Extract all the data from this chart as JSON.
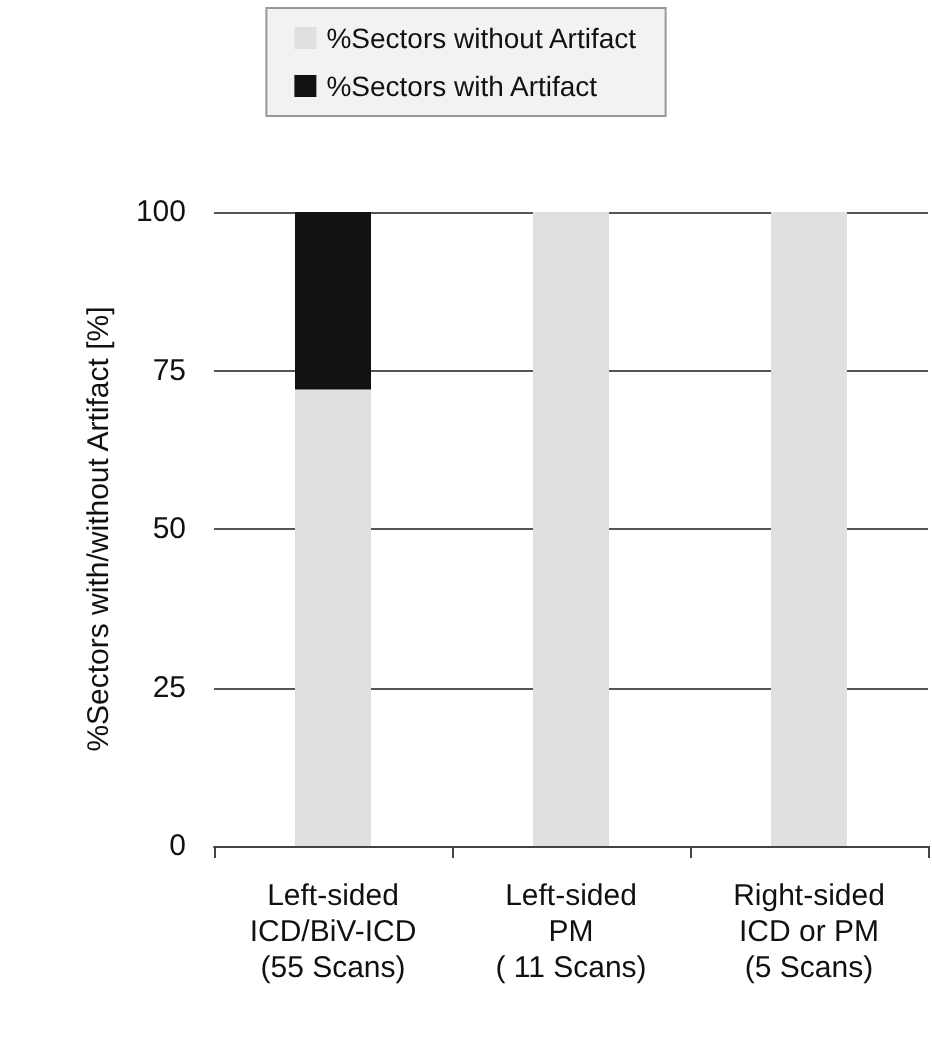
{
  "chart_data": {
    "type": "bar",
    "stacked": true,
    "ylabel": "%Sectors with/without Artifact [%]",
    "categories": [
      "Left-sided\nICD/BiV-ICD\n(55 Scans)",
      "Left-sided\nPM\n( 11 Scans)",
      "Right-sided\nICD or PM\n(5 Scans)"
    ],
    "series": [
      {
        "name": "%Sectors without Artifact",
        "color": "#e0e0e0",
        "values": [
          72,
          100,
          100
        ]
      },
      {
        "name": "%Sectors with Artifact",
        "color": "#111111",
        "values": [
          28,
          0,
          0
        ]
      }
    ],
    "ylim": [
      0,
      100
    ],
    "yticks": [
      0,
      25,
      50,
      75,
      100
    ],
    "grid": "y",
    "legend": "top"
  }
}
